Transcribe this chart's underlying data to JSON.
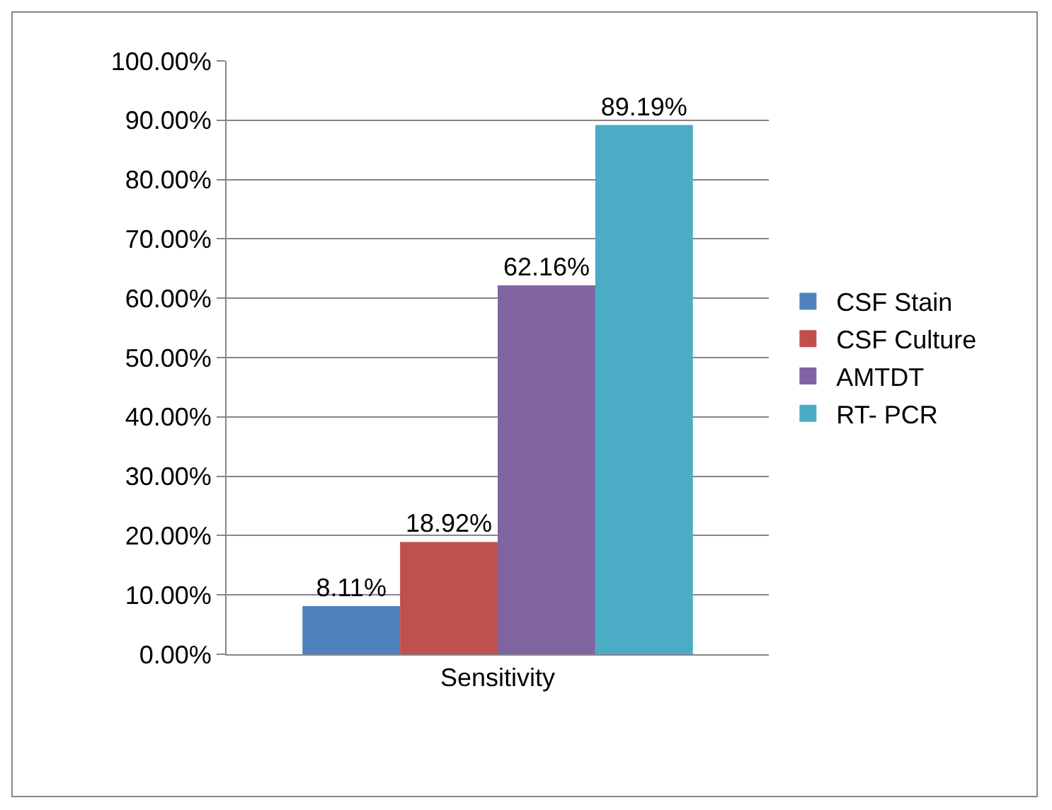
{
  "chart_data": {
    "type": "bar",
    "categories": [
      "Sensitivity"
    ],
    "series": [
      {
        "name": "CSF Stain",
        "color": "#4f81bd",
        "values": [
          8.11
        ],
        "value_labels": [
          "8.11%"
        ]
      },
      {
        "name": "CSF Culture",
        "color": "#c0504d",
        "values": [
          18.92
        ],
        "value_labels": [
          "18.92%"
        ]
      },
      {
        "name": "AMTDT",
        "color": "#8064a2",
        "values": [
          62.16
        ],
        "value_labels": [
          "62.16%"
        ]
      },
      {
        "name": "RT- PCR",
        "color": "#4bacc6",
        "values": [
          89.19
        ],
        "value_labels": [
          "89.19%"
        ]
      }
    ],
    "ylim": [
      0,
      100
    ],
    "yticks": [
      {
        "value": 0,
        "label": "0.00%"
      },
      {
        "value": 10,
        "label": "10.00%"
      },
      {
        "value": 20,
        "label": "20.00%"
      },
      {
        "value": 30,
        "label": "30.00%"
      },
      {
        "value": 40,
        "label": "40.00%"
      },
      {
        "value": 50,
        "label": "50.00%"
      },
      {
        "value": 60,
        "label": "60.00%"
      },
      {
        "value": 70,
        "label": "70.00%"
      },
      {
        "value": 80,
        "label": "80.00%"
      },
      {
        "value": 90,
        "label": "90.00%"
      },
      {
        "value": 100,
        "label": "100.00%"
      }
    ],
    "grid": "y",
    "legend": "right"
  }
}
